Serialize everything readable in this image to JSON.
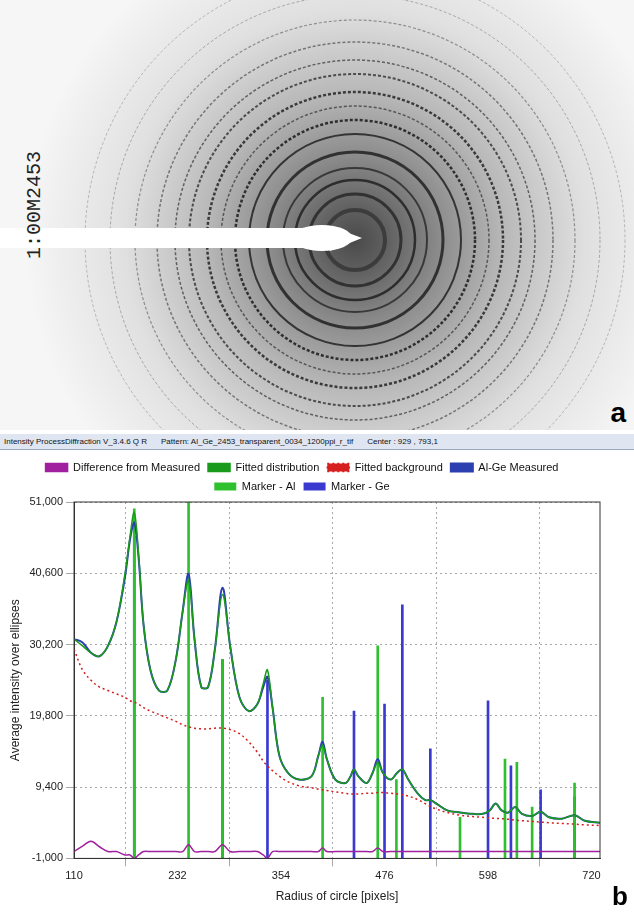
{
  "panel_a": {
    "letter": "a",
    "label": "1:00M2453"
  },
  "panel_b": {
    "letter": "b",
    "window_title": [
      "Intensity ProcessDiffraction V_3.4.6 Q R",
      "Pattern: Al_Ge_2453_transparent_0034_1200ppi_r_tif",
      "Center : 929 , 793,1"
    ]
  },
  "chart_data": {
    "type": "line",
    "x_label": "Radius of circle [pixels]",
    "y_label": "Average intensity over ellipses",
    "xlim": [
      110,
      730
    ],
    "xticks": [
      110,
      232,
      354,
      476,
      598,
      720
    ],
    "ylim": [
      -1000,
      51000
    ],
    "yticks": [
      -1000,
      9400,
      19800,
      30200,
      40600,
      51000
    ],
    "grid": true,
    "legend": "top",
    "series": [
      {
        "name": "Al-Ge Measured",
        "type": "line",
        "color": "#2b3fb0",
        "line_style": "solid",
        "x": [
          110,
          120,
          130,
          140,
          150,
          160,
          170,
          176,
          181,
          186,
          192,
          200,
          210,
          220,
          230,
          238,
          245,
          252,
          260,
          268,
          276,
          285,
          294,
          305,
          316,
          326,
          333,
          338,
          344,
          352,
          362,
          375,
          390,
          398,
          403,
          408,
          418,
          430,
          436,
          440,
          445,
          455,
          462,
          468,
          474,
          483,
          491,
          497,
          504,
          515,
          524,
          530,
          537,
          550,
          565,
          580,
          592,
          600,
          607,
          614,
          622,
          630,
          638,
          650,
          660,
          670,
          685,
          700,
          712,
          730
        ],
        "values": [
          31000,
          30500,
          29000,
          28500,
          30000,
          33500,
          40000,
          45500,
          48000,
          43000,
          33000,
          26500,
          23500,
          23500,
          28000,
          35000,
          40500,
          31000,
          24000,
          24000,
          29500,
          38500,
          30000,
          22500,
          20500,
          21500,
          24000,
          25500,
          21000,
          14000,
          11500,
          10500,
          11000,
          14000,
          16000,
          13500,
          10500,
          10000,
          11000,
          12000,
          11000,
          10000,
          11500,
          13500,
          11500,
          10500,
          11500,
          12000,
          10500,
          8500,
          7500,
          7500,
          7000,
          6000,
          5700,
          5500,
          5500,
          6000,
          7000,
          6000,
          5700,
          6500,
          5500,
          5200,
          5800,
          5000,
          4800,
          5300,
          4500,
          4200
        ]
      },
      {
        "name": "Fitted background",
        "type": "line",
        "color": "#d62020",
        "line_style": "dotted",
        "x": [
          110,
          120,
          130,
          140,
          150,
          160,
          170,
          176,
          181,
          186,
          192,
          200,
          210,
          220,
          230,
          238,
          245,
          252,
          260,
          268,
          276,
          285,
          294,
          305,
          316,
          326,
          333,
          338,
          344,
          352,
          362,
          375,
          390,
          398,
          403,
          408,
          418,
          430,
          436,
          440,
          445,
          455,
          462,
          468,
          474,
          483,
          491,
          497,
          504,
          515,
          524,
          530,
          537,
          550,
          565,
          580,
          592,
          600,
          607,
          614,
          622,
          630,
          638,
          650,
          660,
          670,
          685,
          700,
          712,
          730
        ],
        "values": [
          29500,
          26500,
          25000,
          24000,
          23500,
          23000,
          22500,
          22000,
          21800,
          21500,
          21000,
          20500,
          20000,
          19500,
          19000,
          18500,
          18200,
          18000,
          17900,
          17900,
          18000,
          18000,
          17800,
          17200,
          16000,
          14500,
          13200,
          12500,
          11800,
          11000,
          10200,
          9600,
          9300,
          9100,
          9000,
          8900,
          8700,
          8500,
          8400,
          8400,
          8400,
          8500,
          8500,
          8600,
          8600,
          8500,
          8400,
          8300,
          8100,
          7600,
          7000,
          6600,
          6200,
          5700,
          5300,
          5100,
          5000,
          4900,
          4850,
          4800,
          4700,
          4600,
          4500,
          4400,
          4300,
          4200,
          4100,
          4000,
          3900,
          3800
        ]
      },
      {
        "name": "Marker - Al",
        "type": "bar",
        "color": "#2fc02f",
        "x": [
          181,
          245,
          285,
          403,
          468,
          490,
          565,
          618,
          632,
          650,
          700
        ],
        "values": [
          50000,
          51000,
          28000,
          22500,
          30000,
          10500,
          5000,
          13500,
          13000,
          6500,
          10000
        ]
      },
      {
        "name": "Marker - Ge",
        "type": "bar",
        "color": "#3a3ad0",
        "x": [
          181,
          285,
          338,
          440,
          476,
          497,
          530,
          598,
          625,
          660,
          700
        ],
        "values": [
          46000,
          28000,
          25000,
          20500,
          21500,
          36000,
          15000,
          22000,
          12500,
          9000,
          8000
        ]
      },
      {
        "name": "Fitted distribution",
        "type": "line",
        "color": "#1a9a1a",
        "line_style": "solid",
        "x": [
          110,
          120,
          130,
          140,
          150,
          160,
          170,
          176,
          181,
          186,
          192,
          200,
          210,
          220,
          230,
          238,
          245,
          252,
          260,
          268,
          276,
          285,
          294,
          305,
          316,
          326,
          333,
          338,
          344,
          352,
          362,
          375,
          390,
          398,
          403,
          408,
          418,
          430,
          436,
          440,
          445,
          455,
          462,
          468,
          474,
          483,
          491,
          497,
          504,
          515,
          524,
          530,
          537,
          550,
          565,
          580,
          592,
          600,
          607,
          614,
          622,
          630,
          638,
          650,
          660,
          670,
          685,
          700,
          712,
          730
        ],
        "values": [
          31000,
          30000,
          29000,
          28500,
          30000,
          33500,
          40500,
          46000,
          49500,
          43500,
          33000,
          26500,
          23500,
          23500,
          28000,
          35000,
          39500,
          31000,
          24000,
          24000,
          29500,
          37500,
          30000,
          22500,
          20500,
          21500,
          24500,
          26500,
          21000,
          14000,
          11500,
          10500,
          11000,
          14000,
          15500,
          13500,
          10500,
          10000,
          11000,
          12000,
          11000,
          10000,
          11500,
          13000,
          11500,
          10500,
          11500,
          12000,
          10500,
          8500,
          7500,
          7500,
          7000,
          6000,
          5700,
          5500,
          5500,
          6000,
          7000,
          6000,
          5700,
          6500,
          5500,
          5200,
          5800,
          5000,
          4800,
          5300,
          4500,
          4200
        ]
      },
      {
        "name": "Difference from Measured",
        "type": "line",
        "color": "#a020a0",
        "line_style": "solid",
        "x": [
          110,
          120,
          130,
          140,
          150,
          160,
          170,
          176,
          181,
          186,
          192,
          200,
          210,
          220,
          230,
          238,
          245,
          252,
          260,
          268,
          276,
          285,
          294,
          305,
          316,
          326,
          333,
          338,
          344,
          352,
          362,
          375,
          390,
          398,
          403,
          408,
          418,
          430,
          436,
          440,
          445,
          455,
          462,
          468,
          474,
          483,
          491,
          497,
          504,
          515,
          524,
          530,
          537,
          550,
          565,
          580,
          592,
          600,
          607,
          614,
          622,
          630,
          638,
          650,
          660,
          670,
          685,
          700,
          712,
          730
        ],
        "values": [
          0,
          800,
          1500,
          700,
          0,
          0,
          -500,
          -500,
          -1000,
          -500,
          0,
          0,
          0,
          0,
          0,
          0,
          1000,
          0,
          0,
          0,
          0,
          1000,
          0,
          0,
          0,
          0,
          -500,
          -1000,
          0,
          0,
          0,
          0,
          0,
          0,
          500,
          0,
          0,
          0,
          0,
          0,
          0,
          0,
          0,
          500,
          0,
          0,
          0,
          0,
          0,
          0,
          0,
          0,
          0,
          0,
          0,
          0,
          0,
          0,
          0,
          0,
          0,
          0,
          0,
          0,
          0,
          0,
          0,
          0,
          0,
          0
        ]
      }
    ]
  }
}
